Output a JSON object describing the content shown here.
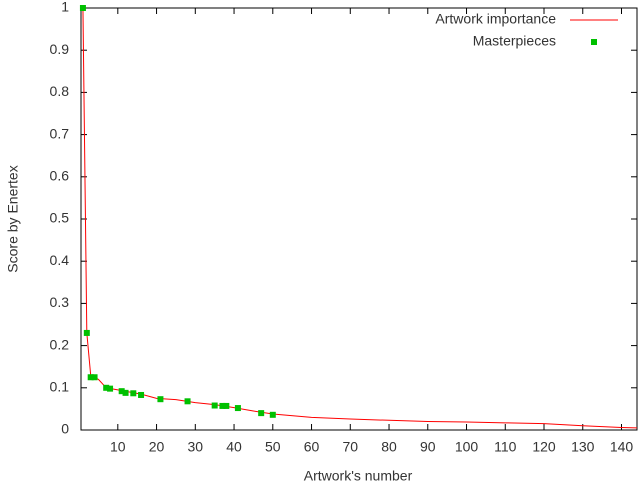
{
  "chart_data": {
    "type": "line",
    "x_label": "Artwork's number",
    "y_label": "Score by Enertex",
    "xlim": [
      0.5,
      144
    ],
    "xticks": [
      10,
      20,
      30,
      40,
      50,
      60,
      70,
      80,
      90,
      100,
      110,
      120,
      130,
      140
    ],
    "ylim": [
      0,
      1
    ],
    "yticks": [
      0,
      0.1,
      0.2,
      0.3,
      0.4,
      0.5,
      0.6,
      0.7,
      0.8,
      0.9,
      1
    ],
    "legend": "top-right",
    "series": [
      {
        "name": "Artwork importance",
        "type": "line",
        "color": "#ff0000",
        "x": [
          1,
          2,
          3,
          5,
          7,
          10,
          13,
          16,
          20,
          25,
          30,
          35,
          40,
          45,
          50,
          60,
          70,
          80,
          90,
          100,
          110,
          120,
          130,
          140,
          144
        ],
        "values": [
          1,
          0.23,
          0.13,
          0.12,
          0.1,
          0.095,
          0.09,
          0.085,
          0.075,
          0.072,
          0.065,
          0.06,
          0.053,
          0.045,
          0.038,
          0.03,
          0.026,
          0.023,
          0.02,
          0.019,
          0.017,
          0.015,
          0.01,
          0.006,
          0.005
        ]
      },
      {
        "name": "Masterpieces",
        "type": "scatter",
        "color": "#00c000",
        "x": [
          1,
          2,
          3,
          4,
          7,
          8,
          11,
          12,
          14,
          16,
          21,
          28,
          35,
          37,
          38,
          41,
          47,
          50
        ],
        "values": [
          1,
          0.23,
          0.125,
          0.125,
          0.1,
          0.098,
          0.092,
          0.088,
          0.087,
          0.083,
          0.073,
          0.068,
          0.058,
          0.057,
          0.057,
          0.052,
          0.04,
          0.036
        ]
      }
    ]
  }
}
